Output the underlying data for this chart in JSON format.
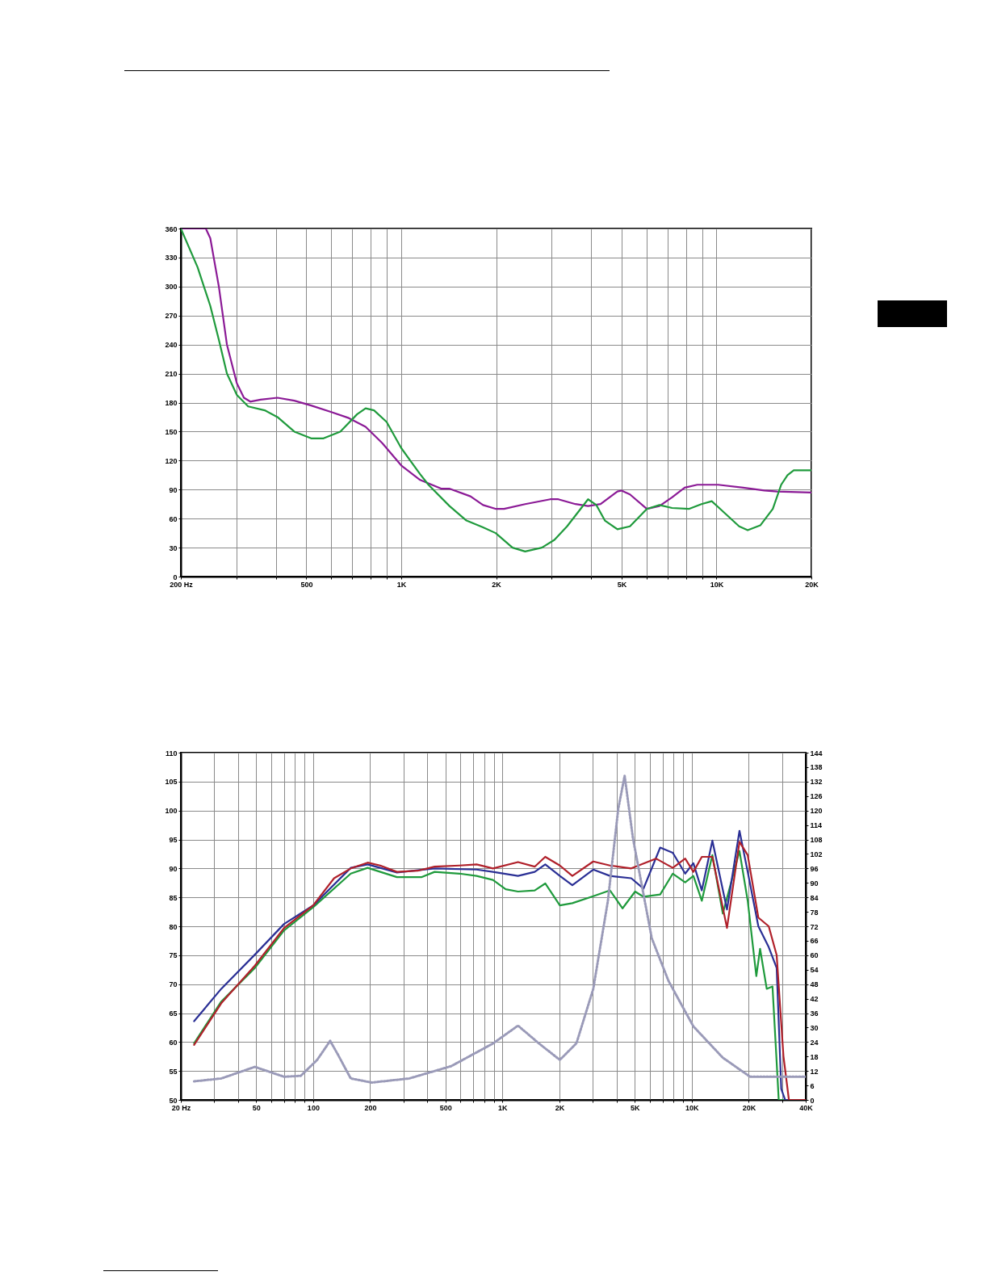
{
  "chart_data": [
    {
      "type": "line",
      "log": "x",
      "grid": true,
      "xlim": [
        200,
        20000
      ],
      "ylim": [
        0,
        360
      ],
      "xticks": [
        {
          "value": 200,
          "label": "200 Hz"
        },
        {
          "value": 300,
          "label": null
        },
        {
          "value": 400,
          "label": null
        },
        500,
        {
          "value": 600,
          "label": null
        },
        {
          "value": 700,
          "label": null
        },
        {
          "value": 800,
          "label": null
        },
        {
          "value": 900,
          "label": null
        },
        {
          "value": 1000,
          "label": "1K"
        },
        {
          "value": 2000,
          "label": "2K"
        },
        {
          "value": 3000,
          "label": null
        },
        {
          "value": 4000,
          "label": null
        },
        {
          "value": 5000,
          "label": "5K"
        },
        {
          "value": 6000,
          "label": null
        },
        {
          "value": 7000,
          "label": null
        },
        {
          "value": 8000,
          "label": null
        },
        {
          "value": 9000,
          "label": null
        },
        {
          "value": 10000,
          "label": "10K"
        },
        {
          "value": 20000,
          "label": "20K"
        }
      ],
      "yticks": [
        0,
        30,
        60,
        90,
        120,
        150,
        180,
        210,
        240,
        270,
        300,
        330,
        360
      ],
      "series": [
        {
          "color": "#8b1a96",
          "x": [
            200,
            240,
            248,
            264,
            280,
            301,
            317,
            332,
            358,
            405,
            458,
            518,
            603,
            682,
            771,
            871,
            1000,
            1148,
            1338,
            1420,
            1659,
            1818,
            2000,
            2120,
            2472,
            2970,
            3150,
            3570,
            3914,
            4290,
            4850,
            5000,
            5316,
            6012,
            6592,
            7228,
            7925,
            8690,
            10120,
            12160,
            14190,
            15560,
            20000
          ],
          "values": [
            360,
            360,
            350,
            300,
            240,
            200,
            185,
            181,
            183,
            185,
            182,
            177,
            170,
            164,
            155,
            138,
            115,
            100,
            91,
            91,
            83,
            74,
            70,
            70,
            75,
            80,
            80,
            75,
            73,
            75,
            88,
            89,
            85,
            70,
            73,
            82,
            92,
            95,
            95,
            92,
            89,
            88,
            87
          ]
        },
        {
          "color": "#1f9a3c",
          "x": [
            200,
            226,
            248,
            264,
            280,
            301,
            327,
            369,
            405,
            458,
            518,
            567,
            641,
            725,
            771,
            820,
            899,
            1000,
            1148,
            1220,
            1423,
            1610,
            1818,
            1994,
            2254,
            2472,
            2794,
            3062,
            3358,
            3914,
            4160,
            4426,
            4850,
            5316,
            6012,
            6592,
            7228,
            8170,
            8960,
            9660,
            10280,
            11800,
            12560,
            13770,
            15090,
            16040,
            16800,
            17580,
            20000
          ],
          "values": [
            360,
            320,
            280,
            245,
            210,
            188,
            176,
            172,
            165,
            150,
            143,
            143,
            150,
            168,
            174,
            172,
            160,
            133,
            106,
            95,
            73,
            58,
            51,
            45,
            30,
            26,
            30,
            38,
            52,
            80,
            74,
            58,
            49,
            52,
            70,
            74,
            71,
            70,
            75,
            78,
            70,
            52,
            48,
            53,
            70,
            95,
            105,
            110,
            110
          ]
        }
      ]
    },
    {
      "type": "line",
      "log": "x",
      "grid": true,
      "xlim": [
        20,
        40000
      ],
      "ylim": [
        50,
        110
      ],
      "y2lim": [
        0,
        144
      ],
      "xticks": [
        {
          "value": 20,
          "label": "20 Hz"
        },
        {
          "value": 30,
          "label": null
        },
        {
          "value": 40,
          "label": null
        },
        50,
        {
          "value": 60,
          "label": null
        },
        {
          "value": 70,
          "label": null
        },
        {
          "value": 80,
          "label": null
        },
        {
          "value": 90,
          "label": null
        },
        100,
        200,
        {
          "value": 300,
          "label": null
        },
        {
          "value": 400,
          "label": null
        },
        500,
        {
          "value": 600,
          "label": null
        },
        {
          "value": 700,
          "label": null
        },
        {
          "value": 800,
          "label": null
        },
        {
          "value": 900,
          "label": null
        },
        {
          "value": 1000,
          "label": "1K"
        },
        {
          "value": 2000,
          "label": "2K"
        },
        {
          "value": 3000,
          "label": null
        },
        {
          "value": 4000,
          "label": null
        },
        {
          "value": 5000,
          "label": "5K"
        },
        {
          "value": 6000,
          "label": null
        },
        {
          "value": 7000,
          "label": null
        },
        {
          "value": 8000,
          "label": null
        },
        {
          "value": 9000,
          "label": null
        },
        {
          "value": 10000,
          "label": "10K"
        },
        {
          "value": 20000,
          "label": "20K"
        },
        {
          "value": 30000,
          "label": null
        },
        {
          "value": 40000,
          "label": "40K"
        }
      ],
      "yticks": [
        50,
        55,
        60,
        65,
        70,
        75,
        80,
        85,
        90,
        95,
        100,
        105,
        110
      ],
      "y2ticks": [
        0,
        6,
        12,
        18,
        24,
        30,
        36,
        42,
        48,
        54,
        60,
        66,
        72,
        78,
        84,
        90,
        96,
        102,
        108,
        114,
        120,
        126,
        132,
        138,
        144
      ],
      "series": [
        {
          "color": "#9a9ab8",
          "axis": "y2",
          "line_style": "dotted",
          "x": [
            23.5,
            32.7,
            49.2,
            70.2,
            86,
            105,
            123,
            136,
            158,
            204,
            322,
            536,
            891,
            1208,
            1560,
            2010,
            2460,
            3017,
            3605,
            4090,
            4420,
            4890,
            6150,
            7530,
            10200,
            14590,
            20330,
            40000
          ],
          "values": [
            7.7,
            8.9,
            13.7,
            9.6,
            10,
            16.6,
            24.5,
            18.4,
            8.9,
            7.2,
            8.9,
            14,
            23.4,
            30.8,
            23.4,
            16.6,
            23.5,
            46,
            82.5,
            120.7,
            134.4,
            108.5,
            67,
            49.4,
            30.5,
            17.5,
            9.6,
            9.6
          ]
        },
        {
          "color": "#1f9a3c",
          "x": [
            23.5,
            32.7,
            49.2,
            70.2,
            100,
            158,
            194,
            277,
            375,
            438,
            593,
            730,
            891,
            1040,
            1208,
            1480,
            1683,
            2010,
            2340,
            3017,
            3700,
            4310,
            5020,
            5560,
            6810,
            7940,
            9230,
            10200,
            11300,
            12850,
            14590,
            17870,
            19750,
            21930,
            22960,
            24890,
            26700,
            28800,
            40000
          ],
          "values": [
            59.8,
            67,
            72.8,
            79.3,
            83.3,
            89.1,
            90.1,
            88.5,
            88.5,
            89.4,
            89.1,
            88.7,
            88,
            86.4,
            86,
            86.2,
            87.4,
            83.6,
            84,
            85.2,
            86.2,
            83.1,
            86,
            85.1,
            85.5,
            89.1,
            87.6,
            88.7,
            84.4,
            92.3,
            82.2,
            93,
            84.4,
            71.4,
            76.1,
            69.2,
            69.6,
            50,
            50
          ]
        },
        {
          "color": "#2a2f95",
          "x": [
            23.5,
            32.7,
            49.2,
            70.2,
            100,
            158,
            194,
            277,
            438,
            730,
            891,
            1208,
            1480,
            1683,
            2010,
            2340,
            3017,
            3700,
            4790,
            5560,
            6810,
            7940,
            9230,
            10200,
            11300,
            12850,
            15350,
            17870,
            19750,
            22480,
            25500,
            28090,
            29700,
            31150,
            40000
          ],
          "values": [
            63.6,
            69.2,
            75.1,
            80.4,
            83.6,
            90.1,
            90.7,
            89.3,
            90,
            89.8,
            89.4,
            88.7,
            89.4,
            90.7,
            88.7,
            87.1,
            89.8,
            88.7,
            88.3,
            86.5,
            93.6,
            92.7,
            89.1,
            90.9,
            86.2,
            94.8,
            82.9,
            96.5,
            89.4,
            80,
            76.4,
            72.8,
            51.9,
            50,
            50
          ]
        },
        {
          "color": "#b0202a",
          "x": [
            23.5,
            32.7,
            49.2,
            70.2,
            100,
            129,
            158,
            194,
            226,
            277,
            357,
            438,
            593,
            730,
            891,
            1208,
            1480,
            1683,
            2010,
            2340,
            3017,
            3700,
            4790,
            6470,
            7940,
            9230,
            10200,
            11300,
            12850,
            15350,
            17870,
            19750,
            22480,
            25500,
            28090,
            30500,
            32600,
            40000
          ],
          "values": [
            59.5,
            66.7,
            73.2,
            79.7,
            83.6,
            88.3,
            90,
            91,
            90.5,
            89.4,
            89.6,
            90.3,
            90.5,
            90.7,
            90,
            91.1,
            90.3,
            92,
            90.5,
            88.7,
            91.2,
            90.5,
            90,
            91.7,
            90.1,
            91.7,
            89.4,
            92,
            92,
            79.7,
            94.6,
            92.3,
            81.5,
            80,
            75,
            57.6,
            50,
            50
          ]
        }
      ]
    }
  ]
}
